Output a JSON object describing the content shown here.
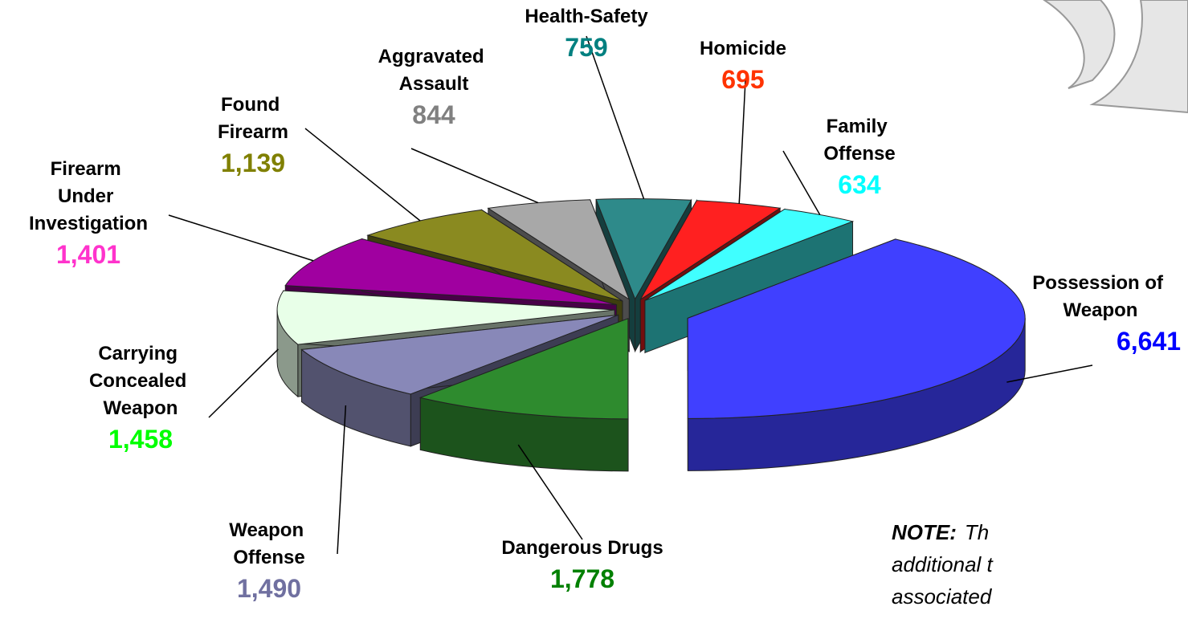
{
  "chart_data": {
    "type": "pie3d",
    "categories": [
      "Possession of Weapon",
      "Dangerous Drugs",
      "Weapon Offense",
      "Carrying Concealed Weapon",
      "Firearm Under Investigation",
      "Found Firearm",
      "Aggravated Assault",
      "Health-Safety",
      "Homicide",
      "Family Offense"
    ],
    "values": [
      6641,
      1778,
      1490,
      1458,
      1401,
      1139,
      844,
      759,
      695,
      634
    ],
    "value_labels": [
      "6,641",
      "1,778",
      "1,490",
      "1,458",
      "1,401",
      "1,139",
      "844",
      "759",
      "695",
      "634"
    ],
    "colors": [
      "#4040ff",
      "#2e8b2e",
      "#8888b8",
      "#e8ffe8",
      "#a000a0",
      "#8a8a20",
      "#a8a8a8",
      "#2e8a8a",
      "#ff2020",
      "#40ffff"
    ],
    "label_colors": [
      "#0000ff",
      "#008000",
      "#7070a0",
      "#00ff00",
      "#ff33cc",
      "#808000",
      "#808080",
      "#008080",
      "#ff3300",
      "#00ffff"
    ],
    "note": {
      "label": "NOTE:",
      "lines": [
        "Th",
        "additional t",
        "associated"
      ]
    }
  }
}
